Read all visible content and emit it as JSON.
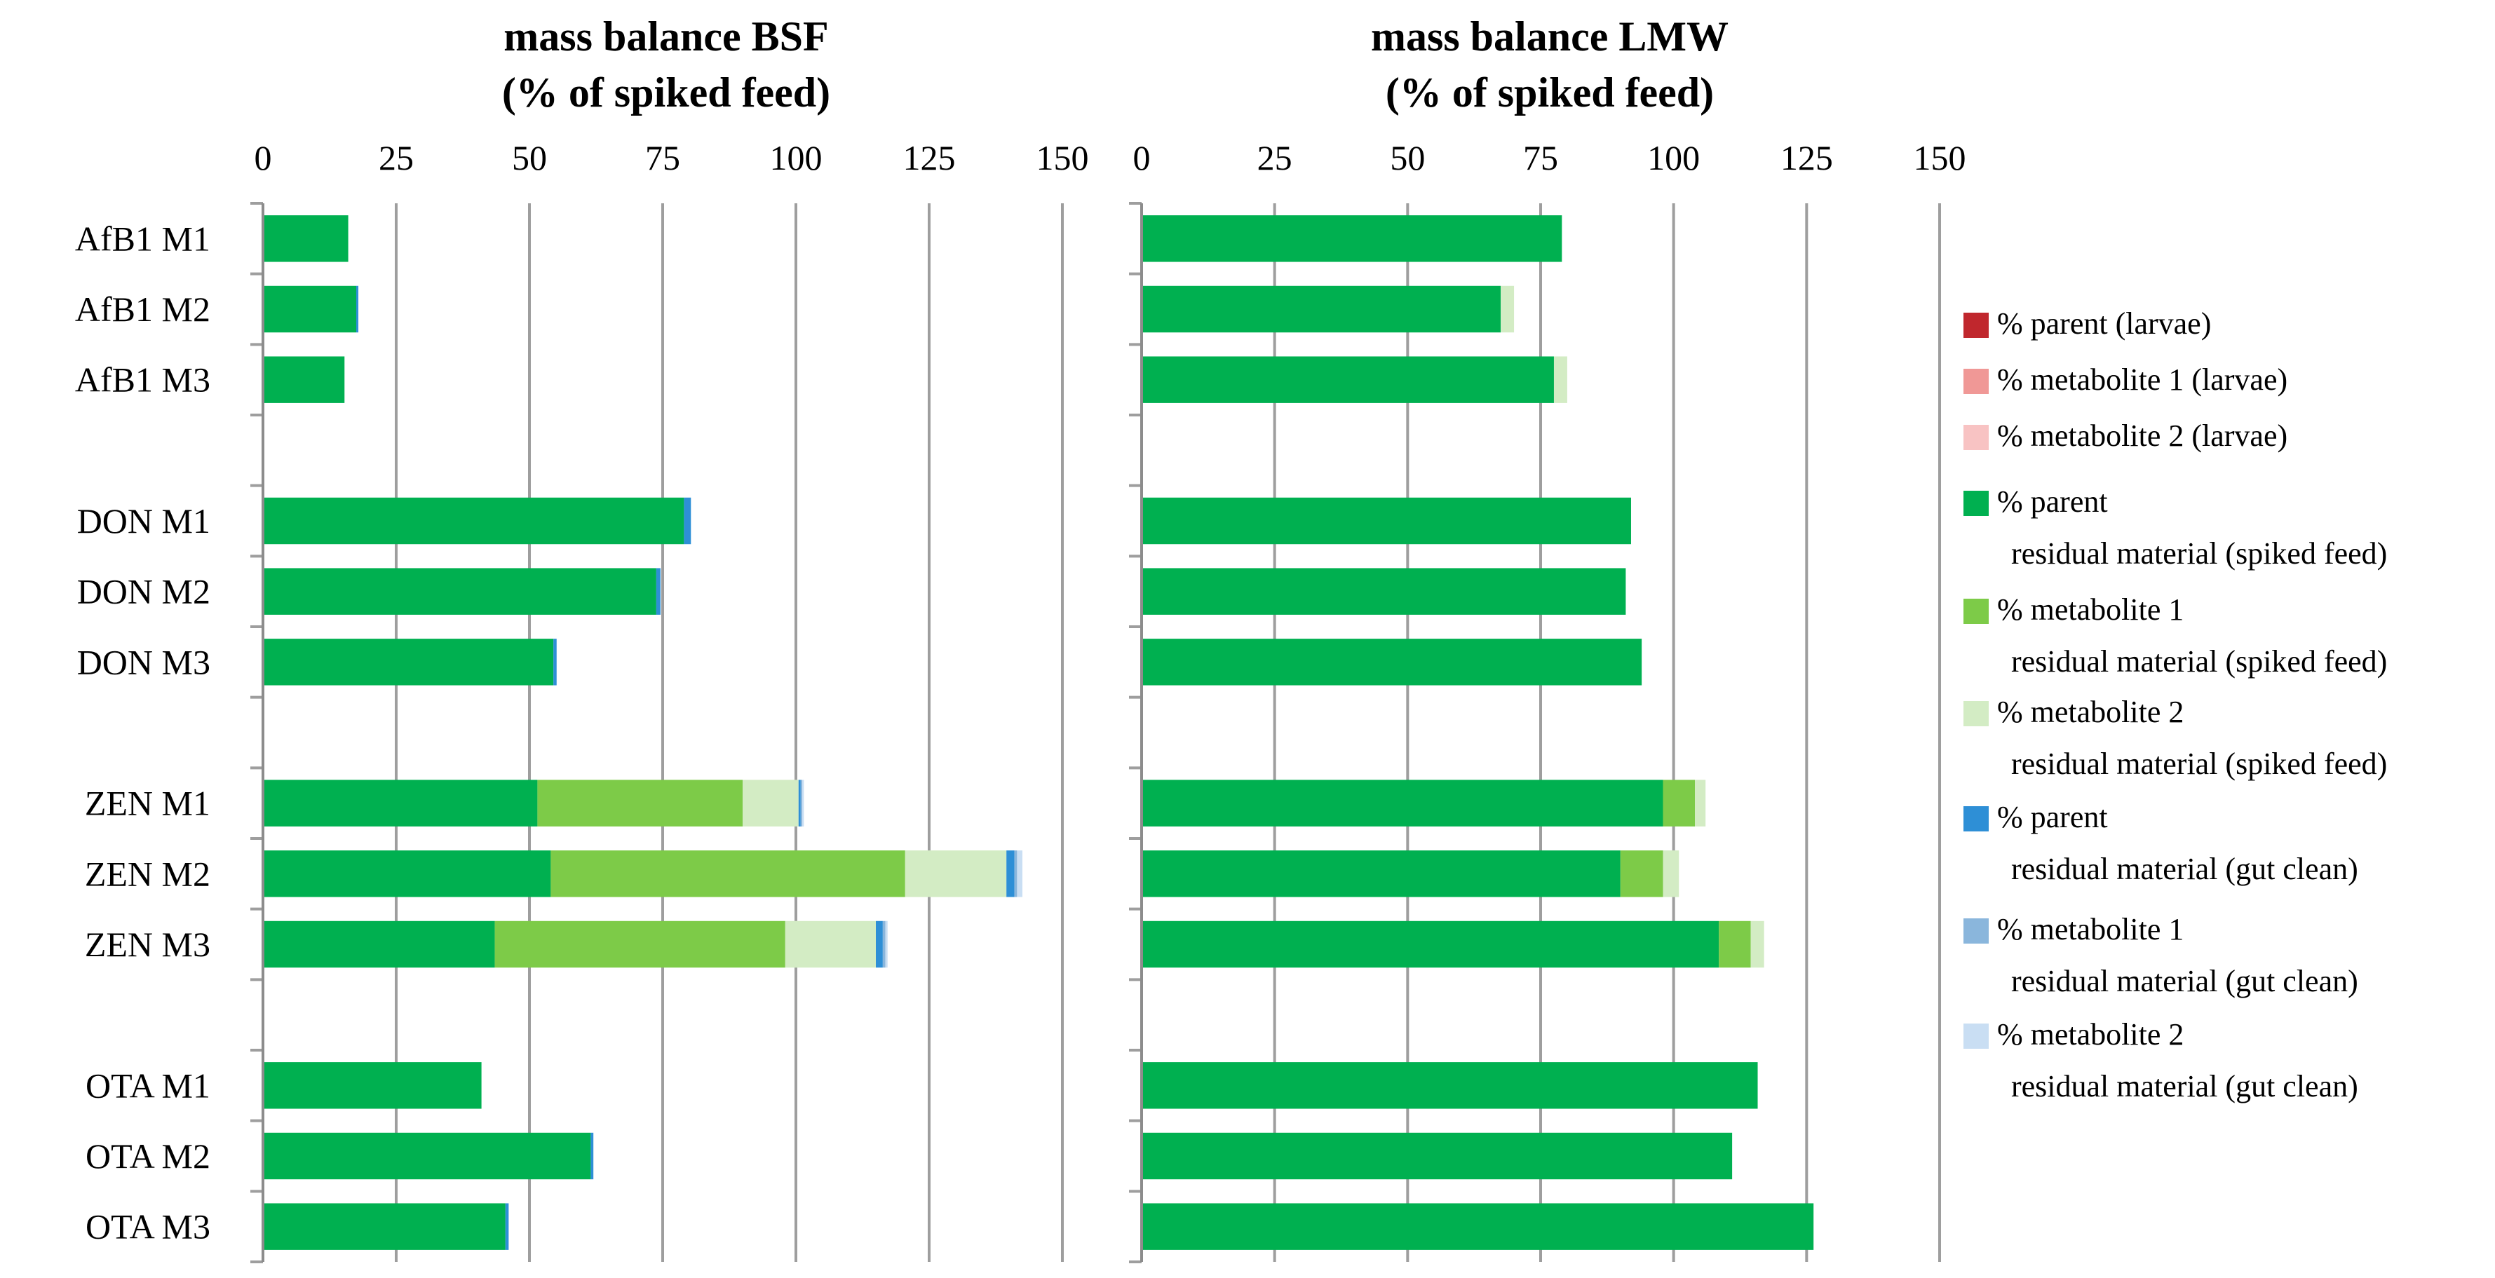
{
  "series": [
    {
      "key": "parent_larvae",
      "name": "% parent (larvae)",
      "color": "#C0272D"
    },
    {
      "key": "met1_larvae",
      "name": "% metabolite 1 (larvae)",
      "color": "#F09896"
    },
    {
      "key": "met2_larvae",
      "name": "% metabolite 2 (larvae)",
      "color": "#F8C3C3"
    },
    {
      "key": "parent_feed",
      "name": "% parent",
      "name2": "residual material (spiked feed)",
      "color": "#00B050"
    },
    {
      "key": "met1_feed",
      "name": "% metabolite 1",
      "name2": "residual material (spiked feed)",
      "color": "#7DCB48"
    },
    {
      "key": "met2_feed",
      "name": "% metabolite 2",
      "name2": "residual material (spiked feed)",
      "color": "#D3ECC4"
    },
    {
      "key": "parent_gut",
      "name": "% parent",
      "name2": "residual material (gut clean)",
      "color": "#2E8FD6"
    },
    {
      "key": "met1_gut",
      "name": "% metabolite 1",
      "name2": "residual material (gut clean)",
      "color": "#8AB6DC"
    },
    {
      "key": "met2_gut",
      "name": "% metabolite 2",
      "name2": "residual material (gut clean)",
      "color": "#C9DEF3"
    }
  ],
  "chart_data": [
    {
      "type": "bar",
      "orientation": "horizontal",
      "stacked": true,
      "title": [
        "mass balance BSF",
        "(% of spiked feed)"
      ],
      "xlim": [
        0,
        150
      ],
      "xticks": [
        0,
        25,
        50,
        75,
        100,
        125,
        150
      ],
      "gridlines": true,
      "legend_position": "right",
      "categories": [
        "AfB1 M1",
        "AfB1 M2",
        "AfB1 M3",
        "DON M1",
        "DON M2",
        "DON M3",
        "ZEN M1",
        "ZEN M2",
        "ZEN M3",
        "OTA M1",
        "OTA M2",
        "OTA M3"
      ],
      "groups": [
        3,
        3,
        3,
        3
      ],
      "series": [
        {
          "name": "% parent (larvae)",
          "values": [
            0,
            0,
            0,
            0,
            0,
            0,
            0,
            0,
            0,
            0,
            0,
            0
          ]
        },
        {
          "name": "% metabolite 1 (larvae)",
          "values": [
            0,
            0,
            0,
            0,
            0,
            0,
            0,
            0,
            0,
            0,
            0,
            0
          ]
        },
        {
          "name": "% metabolite 2 (larvae)",
          "values": [
            0,
            0,
            0,
            0,
            0,
            0,
            0,
            0,
            0,
            0,
            0,
            0
          ]
        },
        {
          "name": "% parent residual material (spiked feed)",
          "values": [
            16,
            17.5,
            15.3,
            79,
            73.8,
            54.5,
            51.5,
            54,
            43.5,
            41,
            61.5,
            45.5
          ]
        },
        {
          "name": "% metabolite 1 residual material (spiked feed)",
          "values": [
            0,
            0,
            0,
            0,
            0,
            0,
            38.5,
            66.5,
            54.5,
            0,
            0,
            0
          ]
        },
        {
          "name": "% metabolite 2 residual material (spiked feed)",
          "values": [
            0,
            0,
            0,
            0,
            0,
            0,
            10.5,
            19,
            17,
            0,
            0,
            0
          ]
        },
        {
          "name": "% parent residual material (gut clean)",
          "values": [
            0,
            0.4,
            0,
            1.3,
            0.8,
            0.6,
            0.4,
            1.5,
            1.3,
            0,
            0.5,
            0.6
          ]
        },
        {
          "name": "% metabolite 1 residual material (gut clean)",
          "values": [
            0,
            0,
            0,
            0,
            0,
            0,
            0.3,
            0.5,
            0.5,
            0,
            0,
            0
          ]
        },
        {
          "name": "% metabolite 2 residual material (gut clean)",
          "values": [
            0,
            0,
            0,
            0,
            0,
            0,
            0.3,
            1,
            0.4,
            0,
            0,
            0
          ]
        }
      ]
    },
    {
      "type": "bar",
      "orientation": "horizontal",
      "stacked": true,
      "title": [
        "mass balance LMW",
        "(% of spiked feed)"
      ],
      "xlim": [
        0,
        150
      ],
      "xticks": [
        0,
        25,
        50,
        75,
        100,
        125,
        150
      ],
      "gridlines": true,
      "legend_position": "right",
      "categories": [
        "AfB1 M1",
        "AfB1 M2",
        "AfB1 M3",
        "DON M1",
        "DON M2",
        "DON M3",
        "ZEN M1",
        "ZEN M2",
        "ZEN M3",
        "OTA M1",
        "OTA M2",
        "OTA M3"
      ],
      "groups": [
        3,
        3,
        3,
        3
      ],
      "series": [
        {
          "name": "% parent (larvae)",
          "values": [
            0,
            0,
            0,
            0,
            0,
            0,
            0,
            0,
            0,
            0,
            0,
            0
          ]
        },
        {
          "name": "% metabolite 1 (larvae)",
          "values": [
            0,
            0,
            0,
            0,
            0,
            0,
            0,
            0,
            0,
            0,
            0,
            0
          ]
        },
        {
          "name": "% metabolite 2 (larvae)",
          "values": [
            0,
            0,
            0,
            0,
            0,
            0,
            0,
            0,
            0,
            0,
            0,
            0
          ]
        },
        {
          "name": "% parent residual material (spiked feed)",
          "values": [
            79,
            67.5,
            77.5,
            92,
            91,
            94,
            98,
            90,
            108.5,
            115.8,
            111,
            126.3
          ]
        },
        {
          "name": "% metabolite 1 residual material (spiked feed)",
          "values": [
            0,
            0,
            0,
            0,
            0,
            0,
            6,
            8,
            6,
            0,
            0,
            0
          ]
        },
        {
          "name": "% metabolite 2 residual material (spiked feed)",
          "values": [
            0,
            2.5,
            2.5,
            0,
            0,
            0,
            2,
            3,
            2.5,
            0,
            0,
            0
          ]
        },
        {
          "name": "% parent residual material (gut clean)",
          "values": [
            0,
            0,
            0,
            0,
            0,
            0,
            0,
            0,
            0,
            0,
            0,
            0
          ]
        },
        {
          "name": "% metabolite 1 residual material (gut clean)",
          "values": [
            0,
            0,
            0,
            0,
            0,
            0,
            0,
            0,
            0,
            0,
            0,
            0
          ]
        },
        {
          "name": "% metabolite 2 residual material (gut clean)",
          "values": [
            0,
            0,
            0,
            0,
            0,
            0,
            0,
            0,
            0,
            0,
            0,
            0
          ]
        }
      ]
    }
  ]
}
